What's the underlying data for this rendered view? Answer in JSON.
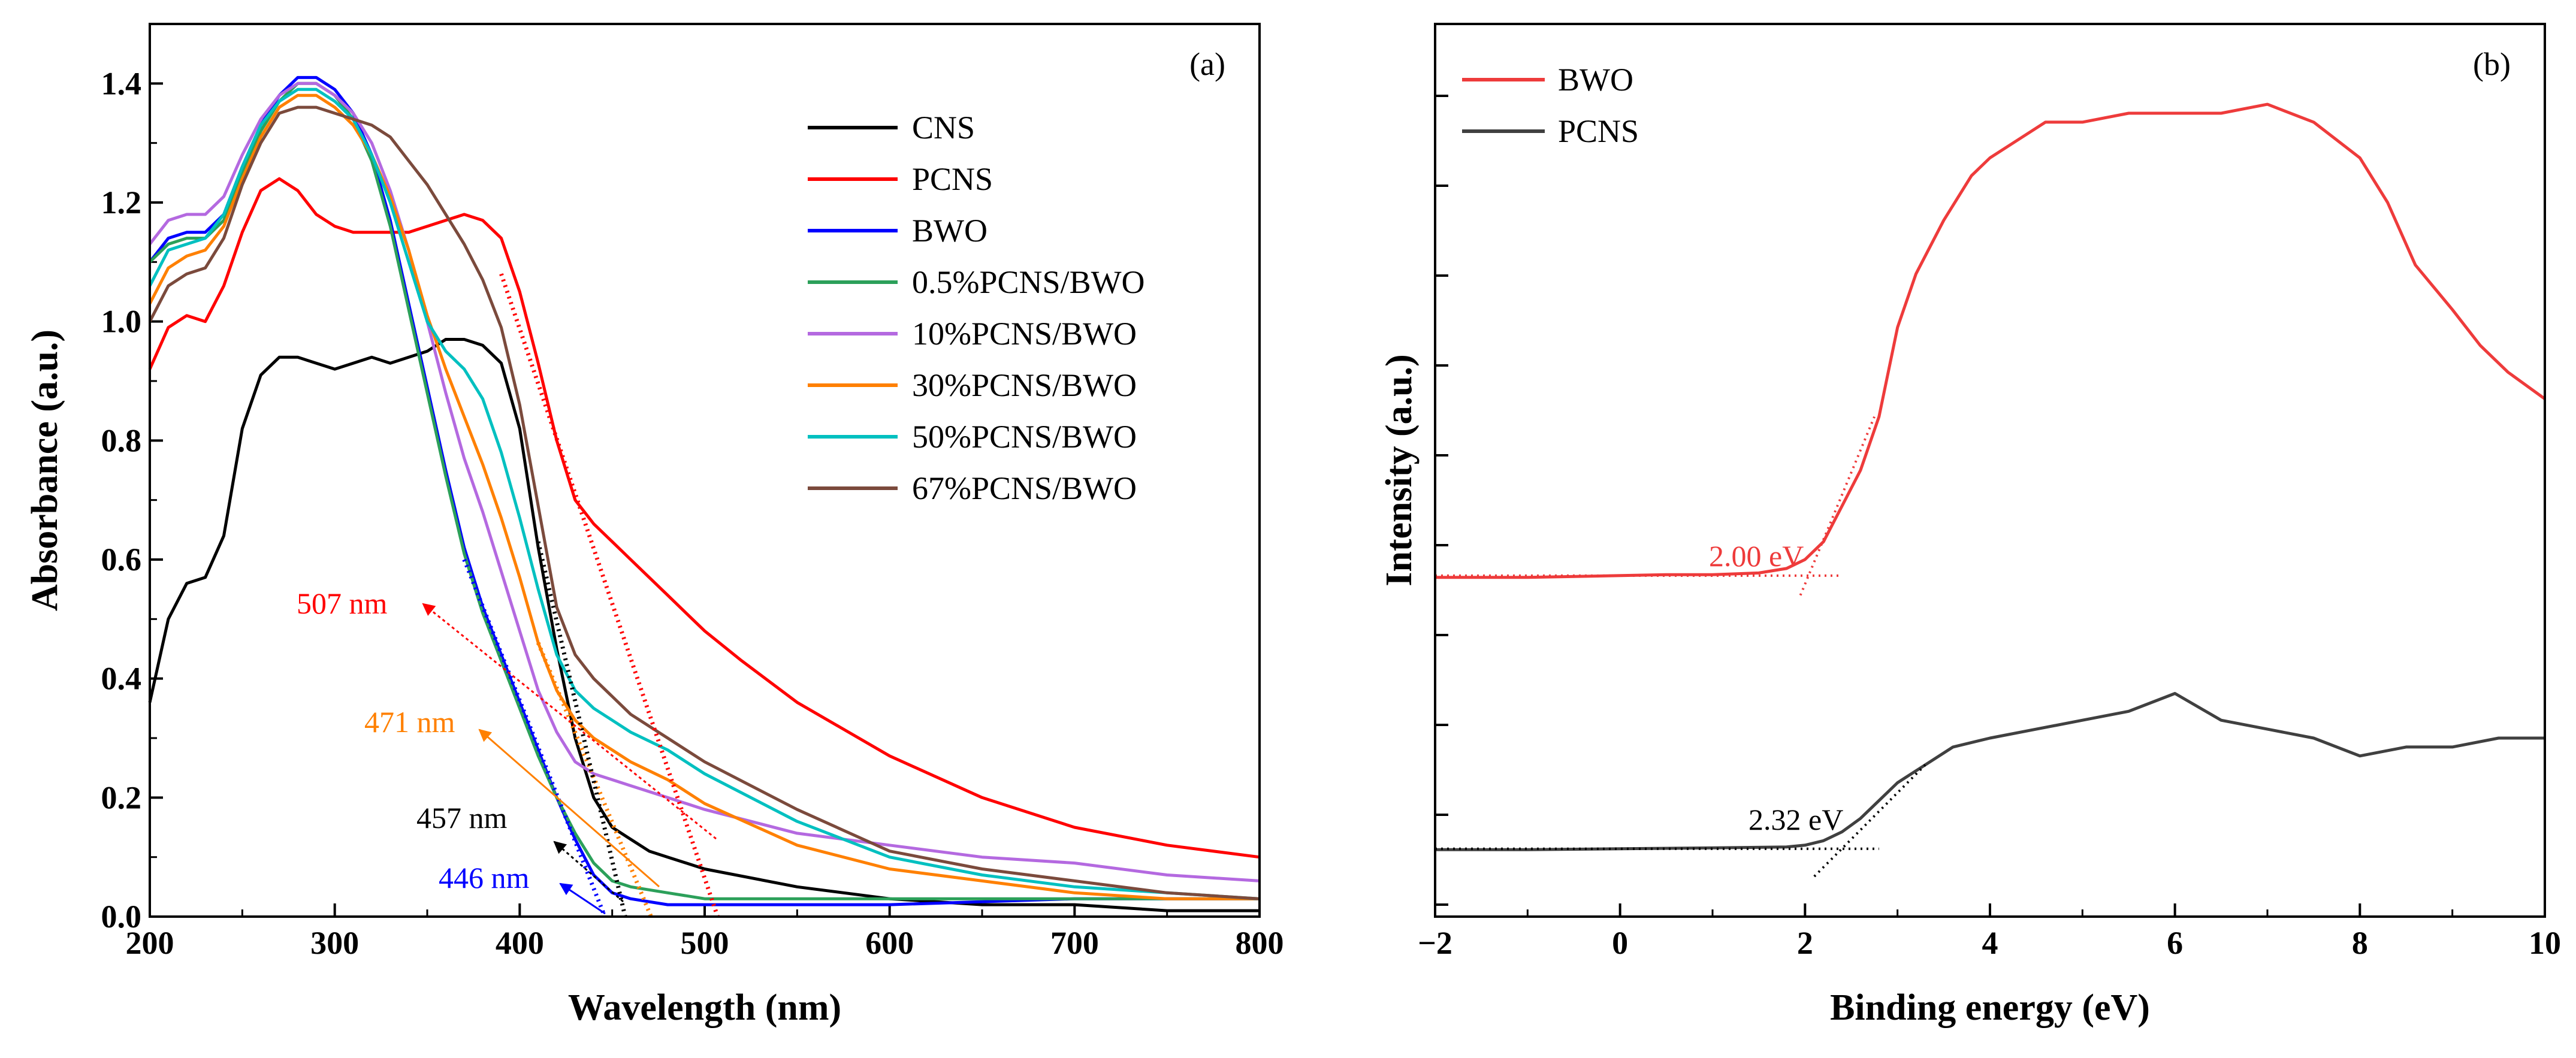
{
  "chart_data": [
    {
      "type": "line",
      "panel_label": "(a)",
      "xlabel": "Wavelength (nm)",
      "ylabel": "Absorbance (a.u.)",
      "xlim": [
        200,
        800
      ],
      "ylim": [
        0,
        1.5
      ],
      "x_ticks": [
        "200",
        "300",
        "400",
        "500",
        "600",
        "700",
        "800"
      ],
      "y_ticks": [
        "0.0",
        "0.2",
        "0.4",
        "0.6",
        "0.8",
        "1.0",
        "1.2",
        "1.4"
      ],
      "legend_position": "top-right",
      "series": [
        {
          "name": "CNS",
          "color": "#000000",
          "x": [
            200,
            210,
            220,
            230,
            240,
            250,
            260,
            270,
            280,
            290,
            300,
            310,
            320,
            330,
            340,
            350,
            360,
            370,
            380,
            390,
            400,
            410,
            420,
            430,
            440,
            450,
            460,
            470,
            480,
            500,
            550,
            600,
            650,
            700,
            750,
            800
          ],
          "y": [
            0.36,
            0.5,
            0.56,
            0.57,
            0.64,
            0.82,
            0.91,
            0.94,
            0.94,
            0.93,
            0.92,
            0.93,
            0.94,
            0.93,
            0.94,
            0.95,
            0.97,
            0.97,
            0.96,
            0.93,
            0.82,
            0.62,
            0.45,
            0.3,
            0.2,
            0.15,
            0.13,
            0.11,
            0.1,
            0.08,
            0.05,
            0.03,
            0.02,
            0.02,
            0.01,
            0.01
          ]
        },
        {
          "name": "PCNS",
          "color": "#ff0000",
          "x": [
            200,
            210,
            220,
            230,
            240,
            250,
            260,
            270,
            280,
            290,
            300,
            310,
            320,
            330,
            340,
            350,
            360,
            370,
            380,
            390,
            400,
            410,
            420,
            430,
            440,
            450,
            460,
            470,
            480,
            490,
            500,
            520,
            550,
            600,
            650,
            700,
            750,
            800
          ],
          "y": [
            0.92,
            0.99,
            1.01,
            1.0,
            1.06,
            1.15,
            1.22,
            1.24,
            1.22,
            1.18,
            1.16,
            1.15,
            1.15,
            1.15,
            1.15,
            1.16,
            1.17,
            1.18,
            1.17,
            1.14,
            1.05,
            0.93,
            0.8,
            0.7,
            0.66,
            0.63,
            0.6,
            0.57,
            0.54,
            0.51,
            0.48,
            0.43,
            0.36,
            0.27,
            0.2,
            0.15,
            0.12,
            0.1
          ]
        },
        {
          "name": "BWO",
          "color": "#0000ff",
          "x": [
            200,
            210,
            220,
            230,
            240,
            250,
            260,
            270,
            280,
            290,
            300,
            310,
            320,
            330,
            340,
            350,
            360,
            370,
            380,
            390,
            400,
            410,
            420,
            430,
            440,
            450,
            460,
            480,
            500,
            600,
            700,
            800
          ],
          "y": [
            1.1,
            1.14,
            1.15,
            1.15,
            1.18,
            1.26,
            1.33,
            1.38,
            1.41,
            1.41,
            1.39,
            1.35,
            1.28,
            1.17,
            1.03,
            0.89,
            0.75,
            0.62,
            0.52,
            0.44,
            0.36,
            0.28,
            0.2,
            0.13,
            0.07,
            0.04,
            0.03,
            0.02,
            0.02,
            0.02,
            0.03,
            0.03
          ]
        },
        {
          "name": "0.5%PCNS/BWO",
          "color": "#2ca05a",
          "x": [
            200,
            210,
            220,
            230,
            240,
            250,
            260,
            270,
            280,
            290,
            300,
            310,
            320,
            330,
            340,
            350,
            360,
            370,
            380,
            390,
            400,
            410,
            420,
            430,
            440,
            450,
            460,
            480,
            500,
            600,
            700,
            800
          ],
          "y": [
            1.1,
            1.13,
            1.14,
            1.14,
            1.17,
            1.25,
            1.32,
            1.37,
            1.4,
            1.4,
            1.38,
            1.34,
            1.27,
            1.16,
            1.02,
            0.88,
            0.74,
            0.61,
            0.51,
            0.43,
            0.35,
            0.27,
            0.2,
            0.14,
            0.09,
            0.06,
            0.05,
            0.04,
            0.03,
            0.03,
            0.03,
            0.03
          ]
        },
        {
          "name": "10%PCNS/BWO",
          "color": "#b469e0",
          "x": [
            200,
            210,
            220,
            230,
            240,
            250,
            260,
            270,
            280,
            290,
            300,
            310,
            320,
            330,
            340,
            350,
            360,
            370,
            380,
            390,
            400,
            410,
            420,
            430,
            440,
            450,
            460,
            480,
            500,
            550,
            600,
            650,
            700,
            750,
            800
          ],
          "y": [
            1.13,
            1.17,
            1.18,
            1.18,
            1.21,
            1.28,
            1.34,
            1.38,
            1.4,
            1.4,
            1.38,
            1.35,
            1.3,
            1.22,
            1.12,
            1.0,
            0.88,
            0.77,
            0.68,
            0.58,
            0.48,
            0.38,
            0.31,
            0.26,
            0.24,
            0.23,
            0.22,
            0.2,
            0.18,
            0.14,
            0.12,
            0.1,
            0.09,
            0.07,
            0.06
          ]
        },
        {
          "name": "30%PCNS/BWO",
          "color": "#ff8000",
          "x": [
            200,
            210,
            220,
            230,
            240,
            250,
            260,
            270,
            280,
            290,
            300,
            310,
            320,
            330,
            340,
            350,
            360,
            370,
            380,
            390,
            400,
            410,
            420,
            430,
            440,
            450,
            460,
            480,
            500,
            550,
            600,
            650,
            700,
            750,
            800
          ],
          "y": [
            1.03,
            1.09,
            1.11,
            1.12,
            1.16,
            1.24,
            1.31,
            1.36,
            1.38,
            1.38,
            1.36,
            1.33,
            1.28,
            1.21,
            1.12,
            1.01,
            0.92,
            0.84,
            0.76,
            0.67,
            0.57,
            0.46,
            0.38,
            0.33,
            0.3,
            0.28,
            0.26,
            0.23,
            0.19,
            0.12,
            0.08,
            0.06,
            0.04,
            0.03,
            0.03
          ]
        },
        {
          "name": "50%PCNS/BWO",
          "color": "#00c0c0",
          "x": [
            200,
            210,
            220,
            230,
            240,
            250,
            260,
            270,
            280,
            290,
            300,
            310,
            320,
            330,
            340,
            350,
            360,
            370,
            380,
            390,
            400,
            410,
            420,
            430,
            440,
            450,
            460,
            480,
            500,
            550,
            600,
            650,
            700,
            750,
            800
          ],
          "y": [
            1.06,
            1.12,
            1.13,
            1.14,
            1.18,
            1.26,
            1.33,
            1.37,
            1.39,
            1.39,
            1.37,
            1.34,
            1.28,
            1.2,
            1.1,
            1.0,
            0.95,
            0.92,
            0.87,
            0.78,
            0.67,
            0.55,
            0.44,
            0.38,
            0.35,
            0.33,
            0.31,
            0.28,
            0.24,
            0.16,
            0.1,
            0.07,
            0.05,
            0.04,
            0.03
          ]
        },
        {
          "name": "67%PCNS/BWO",
          "color": "#7b4a3c",
          "x": [
            200,
            210,
            220,
            230,
            240,
            250,
            260,
            270,
            280,
            290,
            300,
            310,
            320,
            330,
            340,
            350,
            360,
            370,
            380,
            390,
            400,
            410,
            420,
            430,
            440,
            450,
            460,
            480,
            500,
            550,
            600,
            650,
            700,
            750,
            800
          ],
          "y": [
            1.0,
            1.06,
            1.08,
            1.09,
            1.14,
            1.23,
            1.3,
            1.35,
            1.36,
            1.36,
            1.35,
            1.34,
            1.33,
            1.31,
            1.27,
            1.23,
            1.18,
            1.13,
            1.07,
            0.99,
            0.86,
            0.69,
            0.52,
            0.44,
            0.4,
            0.37,
            0.34,
            0.3,
            0.26,
            0.18,
            0.11,
            0.08,
            0.06,
            0.04,
            0.03
          ]
        }
      ],
      "annotations": [
        {
          "text": "507 nm",
          "color": "#ff0000",
          "target_x": 507
        },
        {
          "text": "471 nm",
          "color": "#ff8000",
          "target_x": 471
        },
        {
          "text": "457 nm",
          "color": "#000000",
          "target_x": 457
        },
        {
          "text": "446 nm",
          "color": "#0000ff",
          "target_x": 446
        }
      ]
    },
    {
      "type": "line",
      "panel_label": "(b)",
      "xlabel": "Binding energy (eV)",
      "ylabel": "Intensity (a.u.)",
      "xlim": [
        -2,
        10
      ],
      "ylim": [
        0,
        1
      ],
      "x_ticks": [
        "−2",
        "0",
        "2",
        "4",
        "6",
        "8",
        "10"
      ],
      "legend_position": "top-left",
      "series": [
        {
          "name": "BWO",
          "color": "#ee3b3b",
          "x": [
            -2,
            -1,
            0,
            0.5,
            1,
            1.5,
            1.8,
            2.0,
            2.2,
            2.4,
            2.6,
            2.8,
            3.0,
            3.2,
            3.5,
            3.8,
            4.0,
            4.3,
            4.6,
            5.0,
            5.5,
            6.0,
            6.5,
            7.0,
            7.5,
            8.0,
            8.3,
            8.6,
            9.0,
            9.3,
            9.6,
            10.0
          ],
          "y": [
            0.38,
            0.38,
            0.382,
            0.383,
            0.383,
            0.385,
            0.39,
            0.4,
            0.42,
            0.46,
            0.5,
            0.56,
            0.66,
            0.72,
            0.78,
            0.83,
            0.85,
            0.87,
            0.89,
            0.89,
            0.9,
            0.9,
            0.9,
            0.91,
            0.89,
            0.85,
            0.8,
            0.73,
            0.68,
            0.64,
            0.61,
            0.58
          ]
        },
        {
          "name": "PCNS",
          "color": "#404040",
          "x": [
            -2,
            -1,
            0,
            1,
            1.8,
            2.0,
            2.2,
            2.4,
            2.6,
            2.8,
            3.0,
            3.3,
            3.6,
            4.0,
            4.5,
            5.0,
            5.5,
            6.0,
            6.5,
            7.0,
            7.5,
            8.0,
            8.5,
            9.0,
            9.5,
            10.0
          ],
          "y": [
            0.075,
            0.075,
            0.076,
            0.077,
            0.078,
            0.08,
            0.085,
            0.095,
            0.11,
            0.13,
            0.15,
            0.17,
            0.19,
            0.2,
            0.21,
            0.22,
            0.23,
            0.25,
            0.22,
            0.21,
            0.2,
            0.18,
            0.19,
            0.19,
            0.2,
            0.2
          ]
        }
      ],
      "annotations": [
        {
          "text": "2.00 eV",
          "color": "#ee3b3b",
          "target_x": 2.0
        },
        {
          "text": "2.32 eV",
          "color": "#000000",
          "target_x": 2.32
        }
      ]
    }
  ]
}
